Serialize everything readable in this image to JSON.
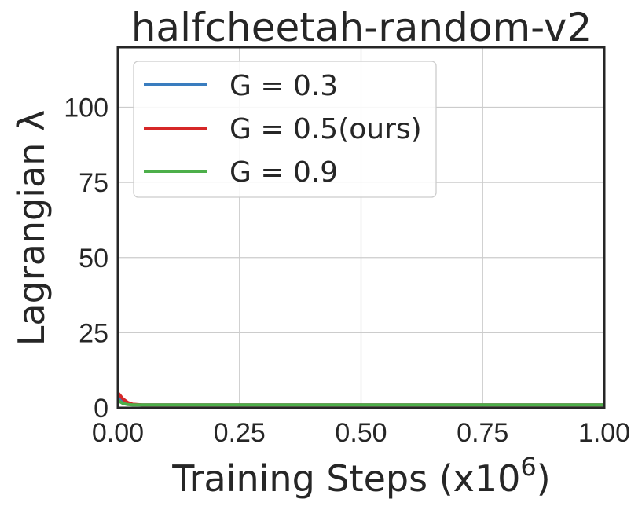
{
  "chart_data": {
    "type": "line",
    "title": "halfcheetah-random-v2",
    "xlabel": "Training Steps (x10",
    "xlabel_exp": "6",
    "xlabel_close": ")",
    "ylabel": "Lagrangian λ",
    "xlim": [
      0,
      1.0
    ],
    "ylim": [
      0,
      120
    ],
    "xticks": [
      "0.00",
      "0.25",
      "0.50",
      "0.75",
      "1.00"
    ],
    "xtick_values": [
      0,
      0.25,
      0.5,
      0.75,
      1.0
    ],
    "yticks": [
      "0",
      "25",
      "50",
      "75",
      "100"
    ],
    "ytick_values": [
      0,
      25,
      50,
      75,
      100
    ],
    "grid": true,
    "legend_position": "top-left",
    "series": [
      {
        "name": "G = 0.3",
        "color": "#3a7dbf",
        "x": [
          0.0,
          0.005,
          0.01,
          0.02,
          0.03,
          0.05,
          0.1,
          0.25,
          0.5,
          0.75,
          1.0
        ],
        "y": [
          3.5,
          2.8,
          2.0,
          1.3,
          1.1,
          1.0,
          1.0,
          1.0,
          1.0,
          1.0,
          1.0
        ]
      },
      {
        "name": "G = 0.5(ours)",
        "color": "#d62728",
        "x": [
          0.0,
          0.005,
          0.01,
          0.02,
          0.03,
          0.05,
          0.1,
          0.25,
          0.5,
          0.75,
          1.0
        ],
        "y": [
          5.0,
          4.0,
          3.0,
          1.8,
          1.2,
          1.0,
          1.0,
          1.0,
          1.0,
          1.0,
          1.0
        ]
      },
      {
        "name": "G = 0.9",
        "color": "#4daf4a",
        "x": [
          0.0,
          0.005,
          0.01,
          0.02,
          0.03,
          0.05,
          0.1,
          0.25,
          0.5,
          0.75,
          1.0
        ],
        "y": [
          2.5,
          2.0,
          1.5,
          1.1,
          1.0,
          1.0,
          1.0,
          1.0,
          1.0,
          1.0,
          1.0
        ]
      }
    ]
  }
}
